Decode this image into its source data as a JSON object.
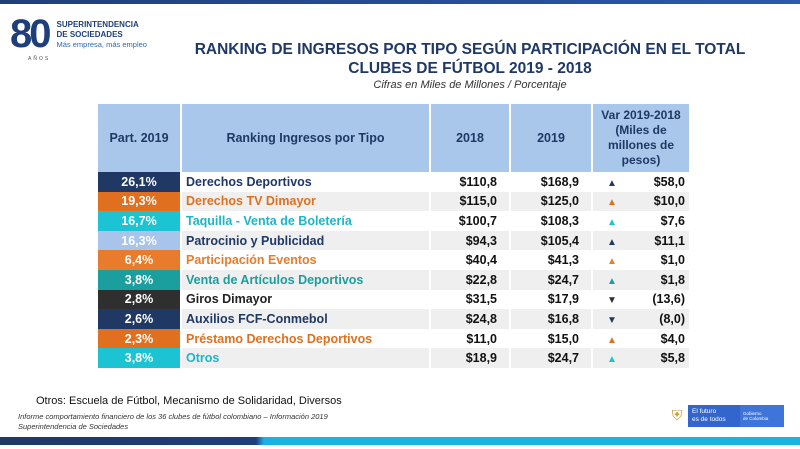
{
  "logo": {
    "number": "80",
    "sub": "AÑOS",
    "line1": "SUPERINTENDENCIA",
    "line2": "DE SOCIEDADES",
    "tagline": "Más empresa, más empleo"
  },
  "title_line1": "RANKING DE INGRESOS POR TIPO SEGÚN PARTICIPACIÓN EN EL TOTAL",
  "title_line2": "CLUBES DE FÚTBOL 2019 - 2018",
  "subtitle": "Cifras en Miles de Millones / Porcentaje",
  "headers": {
    "part": "Part. 2019",
    "name": "Ranking Ingresos por Tipo",
    "y2018": "2018",
    "y2019": "2019",
    "var": "Var 2019-2018 (Miles de millones de pesos)"
  },
  "rows": [
    {
      "part": "26,1%",
      "name": "Derechos Deportivos",
      "y2018": "$110,8",
      "y2019": "$168,9",
      "arrow": "▲",
      "var": "$58,0",
      "partColor": "#1f3864",
      "nameColor": "#1f3864"
    },
    {
      "part": "19,3%",
      "name": "Derechos TV Dimayor",
      "y2018": "$115,0",
      "y2019": "$125,0",
      "arrow": "▲",
      "var": "$10,0",
      "partColor": "#e0701f",
      "nameColor": "#e0701f"
    },
    {
      "part": "16,7%",
      "name": "Taquilla - Venta de Boletería",
      "y2018": "$100,7",
      "y2019": "$108,3",
      "arrow": "▲",
      "var": "$7,6",
      "partColor": "#1cc3d3",
      "nameColor": "#1cb6c8"
    },
    {
      "part": "16,3%",
      "name": "Patrocinio y Publicidad",
      "y2018": "$94,3",
      "y2019": "$105,4",
      "arrow": "▲",
      "var": "$11,1",
      "partColor": "#a9c4eb",
      "nameColor": "#1f3864"
    },
    {
      "part": "6,4%",
      "name": "Participación Eventos",
      "y2018": "$40,4",
      "y2019": "$41,3",
      "arrow": "▲",
      "var": "$1,0",
      "partColor": "#e97b2c",
      "nameColor": "#e97b2c"
    },
    {
      "part": "3,8%",
      "name": "Venta de Artículos Deportivos",
      "y2018": "$22,8",
      "y2019": "$24,7",
      "arrow": "▲",
      "var": "$1,8",
      "partColor": "#1b9e9e",
      "nameColor": "#1b9e9e"
    },
    {
      "part": "2,8%",
      "name": "Giros Dimayor",
      "y2018": "$31,5",
      "y2019": "$17,9",
      "arrow": "▼",
      "var": "(13,6)",
      "partColor": "#2f2f2f",
      "nameColor": "#222222"
    },
    {
      "part": "2,6%",
      "name": "Auxilios FCF-Conmebol",
      "y2018": "$24,8",
      "y2019": "$16,8",
      "arrow": "▼",
      "var": "(8,0)",
      "partColor": "#1f3864",
      "nameColor": "#1f3864"
    },
    {
      "part": "2,3%",
      "name": "Préstamo Derechos Deportivos",
      "y2018": "$11,0",
      "y2019": "$15,0",
      "arrow": "▲",
      "var": "$4,0",
      "partColor": "#e0701f",
      "nameColor": "#e0701f"
    },
    {
      "part": "3,8%",
      "name": "Otros",
      "y2018": "$18,9",
      "y2019": "$24,7",
      "arrow": "▲",
      "var": "$5,8",
      "partColor": "#1cc3d3",
      "nameColor": "#1cb6c8"
    }
  ],
  "note": "Otros: Escuela de Fútbol, Mecanismo de Solidaridad, Diversos",
  "source_line1": "Informe comportamiento financiero de los 36 clubes de fútbol colombiano – Información 2019",
  "source_line2": "Superintendencia de Sociedades",
  "gov": {
    "slogan1": "El futuro",
    "slogan2": "es de todos",
    "brand1": "Gobierno",
    "brand2": "de Colombia"
  }
}
